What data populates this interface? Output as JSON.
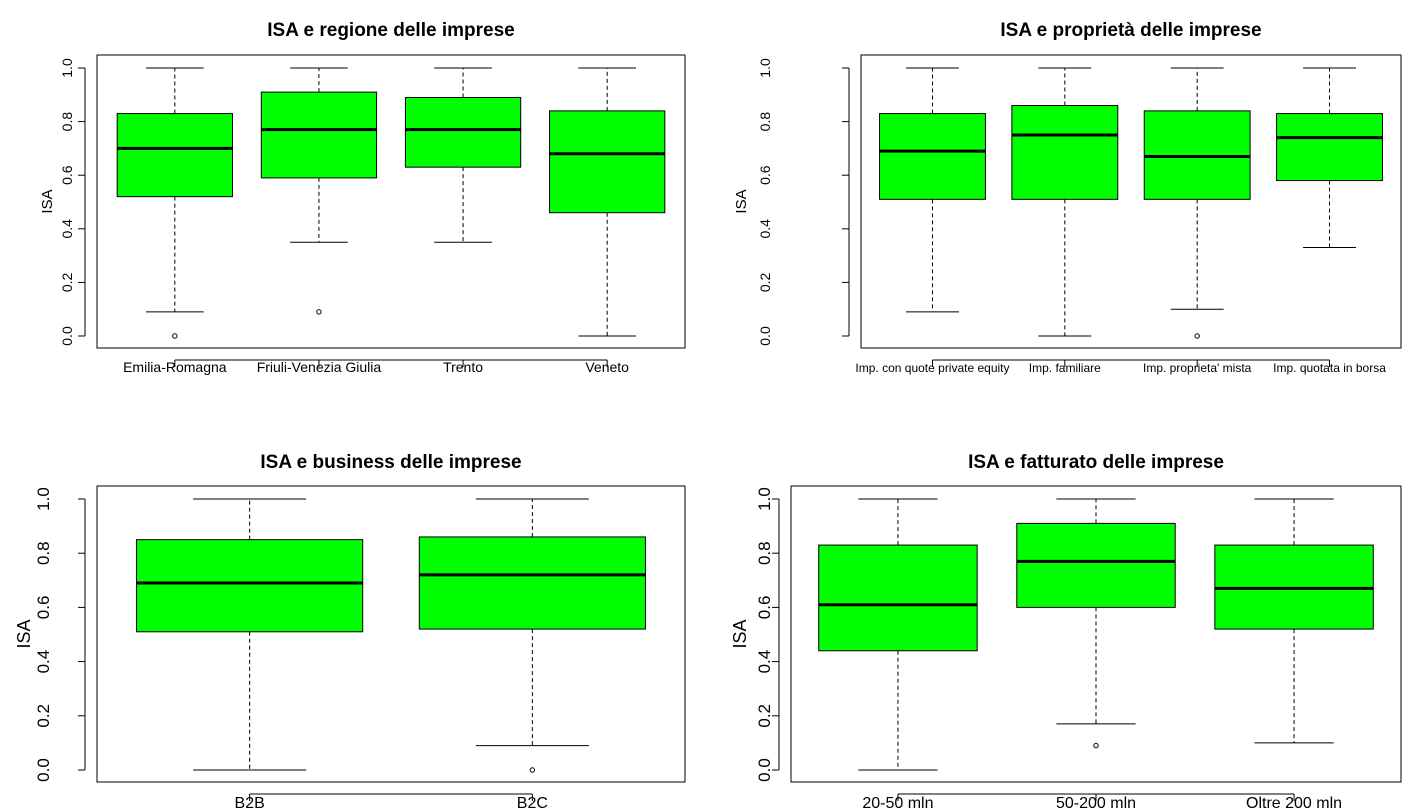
{
  "chart_data": [
    {
      "type": "boxplot",
      "title": "ISA e regione delle imprese",
      "ylabel": "ISA",
      "xlabel": "",
      "ylim": [
        0,
        1
      ],
      "yticks": [
        "0.0",
        "0.2",
        "0.4",
        "0.6",
        "0.8",
        "1.0"
      ],
      "fill_color": "#00ff00",
      "categories": [
        "Emilia-Romagna",
        "Friuli-Venezia Giulia",
        "Trento",
        "Veneto"
      ],
      "boxes": [
        {
          "category": "Emilia-Romagna",
          "whisker_low": 0.09,
          "q1": 0.52,
          "median": 0.7,
          "q3": 0.83,
          "whisker_high": 1.0,
          "outliers": [
            0.0
          ]
        },
        {
          "category": "Friuli-Venezia Giulia",
          "whisker_low": 0.35,
          "q1": 0.59,
          "median": 0.77,
          "q3": 0.91,
          "whisker_high": 1.0,
          "outliers": [
            0.09
          ]
        },
        {
          "category": "Trento",
          "whisker_low": 0.35,
          "q1": 0.63,
          "median": 0.77,
          "q3": 0.89,
          "whisker_high": 1.0,
          "outliers": []
        },
        {
          "category": "Veneto",
          "whisker_low": 0.0,
          "q1": 0.46,
          "median": 0.68,
          "q3": 0.84,
          "whisker_high": 1.0,
          "outliers": []
        }
      ]
    },
    {
      "type": "boxplot",
      "title": "ISA e proprietà delle imprese",
      "ylabel": "ISA",
      "xlabel": "",
      "ylim": [
        0,
        1
      ],
      "yticks": [
        "0.0",
        "0.2",
        "0.4",
        "0.6",
        "0.8",
        "1.0"
      ],
      "fill_color": "#00ff00",
      "categories": [
        "Imp. con quote private equity",
        "Imp. familiare",
        "Imp. proprieta' mista",
        "Imp. quotata in borsa"
      ],
      "boxes": [
        {
          "category": "Imp. con quote private equity",
          "whisker_low": 0.09,
          "q1": 0.51,
          "median": 0.69,
          "q3": 0.83,
          "whisker_high": 1.0,
          "outliers": []
        },
        {
          "category": "Imp. familiare",
          "whisker_low": 0.0,
          "q1": 0.51,
          "median": 0.75,
          "q3": 0.86,
          "whisker_high": 1.0,
          "outliers": []
        },
        {
          "category": "Imp. proprieta' mista",
          "whisker_low": 0.1,
          "q1": 0.51,
          "median": 0.67,
          "q3": 0.84,
          "whisker_high": 1.0,
          "outliers": [
            0.0
          ]
        },
        {
          "category": "Imp. quotata in borsa",
          "whisker_low": 0.33,
          "q1": 0.58,
          "median": 0.74,
          "q3": 0.83,
          "whisker_high": 1.0,
          "outliers": []
        }
      ]
    },
    {
      "type": "boxplot",
      "title": "ISA e business delle imprese",
      "ylabel": "ISA",
      "xlabel": "",
      "ylim": [
        0,
        1
      ],
      "yticks": [
        "0.0",
        "0.2",
        "0.4",
        "0.6",
        "0.8",
        "1.0"
      ],
      "fill_color": "#00ff00",
      "categories": [
        "B2B",
        "B2C"
      ],
      "boxes": [
        {
          "category": "B2B",
          "whisker_low": 0.0,
          "q1": 0.51,
          "median": 0.69,
          "q3": 0.85,
          "whisker_high": 1.0,
          "outliers": []
        },
        {
          "category": "B2C",
          "whisker_low": 0.09,
          "q1": 0.52,
          "median": 0.72,
          "q3": 0.86,
          "whisker_high": 1.0,
          "outliers": [
            0.0
          ]
        }
      ]
    },
    {
      "type": "boxplot",
      "title": "ISA e fatturato delle imprese",
      "ylabel": "ISA",
      "xlabel": "",
      "ylim": [
        0,
        1
      ],
      "yticks": [
        "0.0",
        "0.2",
        "0.4",
        "0.6",
        "0.8",
        "1.0"
      ],
      "fill_color": "#00ff00",
      "categories": [
        "20-50 mln",
        "50-200 mln",
        "Oltre 200 mln"
      ],
      "boxes": [
        {
          "category": "20-50 mln",
          "whisker_low": 0.0,
          "q1": 0.44,
          "median": 0.61,
          "q3": 0.83,
          "whisker_high": 1.0,
          "outliers": []
        },
        {
          "category": "50-200 mln",
          "whisker_low": 0.17,
          "q1": 0.6,
          "median": 0.77,
          "q3": 0.91,
          "whisker_high": 1.0,
          "outliers": [
            0.09
          ]
        },
        {
          "category": "Oltre 200 mln",
          "whisker_low": 0.1,
          "q1": 0.52,
          "median": 0.67,
          "q3": 0.83,
          "whisker_high": 1.0,
          "outliers": []
        }
      ]
    }
  ]
}
